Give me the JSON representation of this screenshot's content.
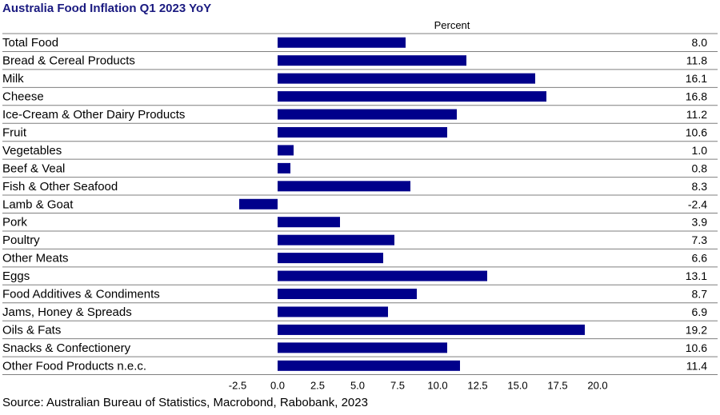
{
  "chart_data": {
    "type": "bar",
    "orientation": "horizontal",
    "title": "Australia Food Inflation Q1 2023 YoY",
    "unit_label": "Percent",
    "source": "Source: Australian Bureau of Statistics, Macrobond, Rabobank, 2023",
    "categories": [
      "Total Food",
      "Bread & Cereal Products",
      "Milk",
      "Cheese",
      "Ice-Cream & Other Dairy Products",
      "Fruit",
      "Vegetables",
      "Beef & Veal",
      "Fish & Other Seafood",
      "Lamb & Goat",
      "Pork",
      "Poultry",
      "Other Meats",
      "Eggs",
      "Food Additives & Condiments",
      "Jams, Honey & Spreads",
      "Oils & Fats",
      "Snacks & Confectionery",
      "Other Food Products n.e.c."
    ],
    "values": [
      8.0,
      11.8,
      16.1,
      16.8,
      11.2,
      10.6,
      1.0,
      0.8,
      8.3,
      -2.4,
      3.9,
      7.3,
      6.6,
      13.1,
      8.7,
      6.9,
      19.2,
      10.6,
      11.4
    ],
    "value_labels": [
      "8.0",
      "11.8",
      "16.1",
      "16.8",
      "11.2",
      "10.6",
      "1.0",
      "0.8",
      "8.3",
      "-2.4",
      "3.9",
      "7.3",
      "6.6",
      "13.1",
      "8.7",
      "6.9",
      "19.2",
      "10.6",
      "11.4"
    ],
    "xlim": [
      -2.5,
      20.0
    ],
    "x_ticks": [
      "-2.5",
      "0.0",
      "2.5",
      "5.0",
      "7.5",
      "10.0",
      "12.5",
      "15.0",
      "17.5",
      "20.0"
    ],
    "bar_color": "#00008b",
    "title_color": "#1a1a80",
    "legend": "none",
    "grid": false
  }
}
